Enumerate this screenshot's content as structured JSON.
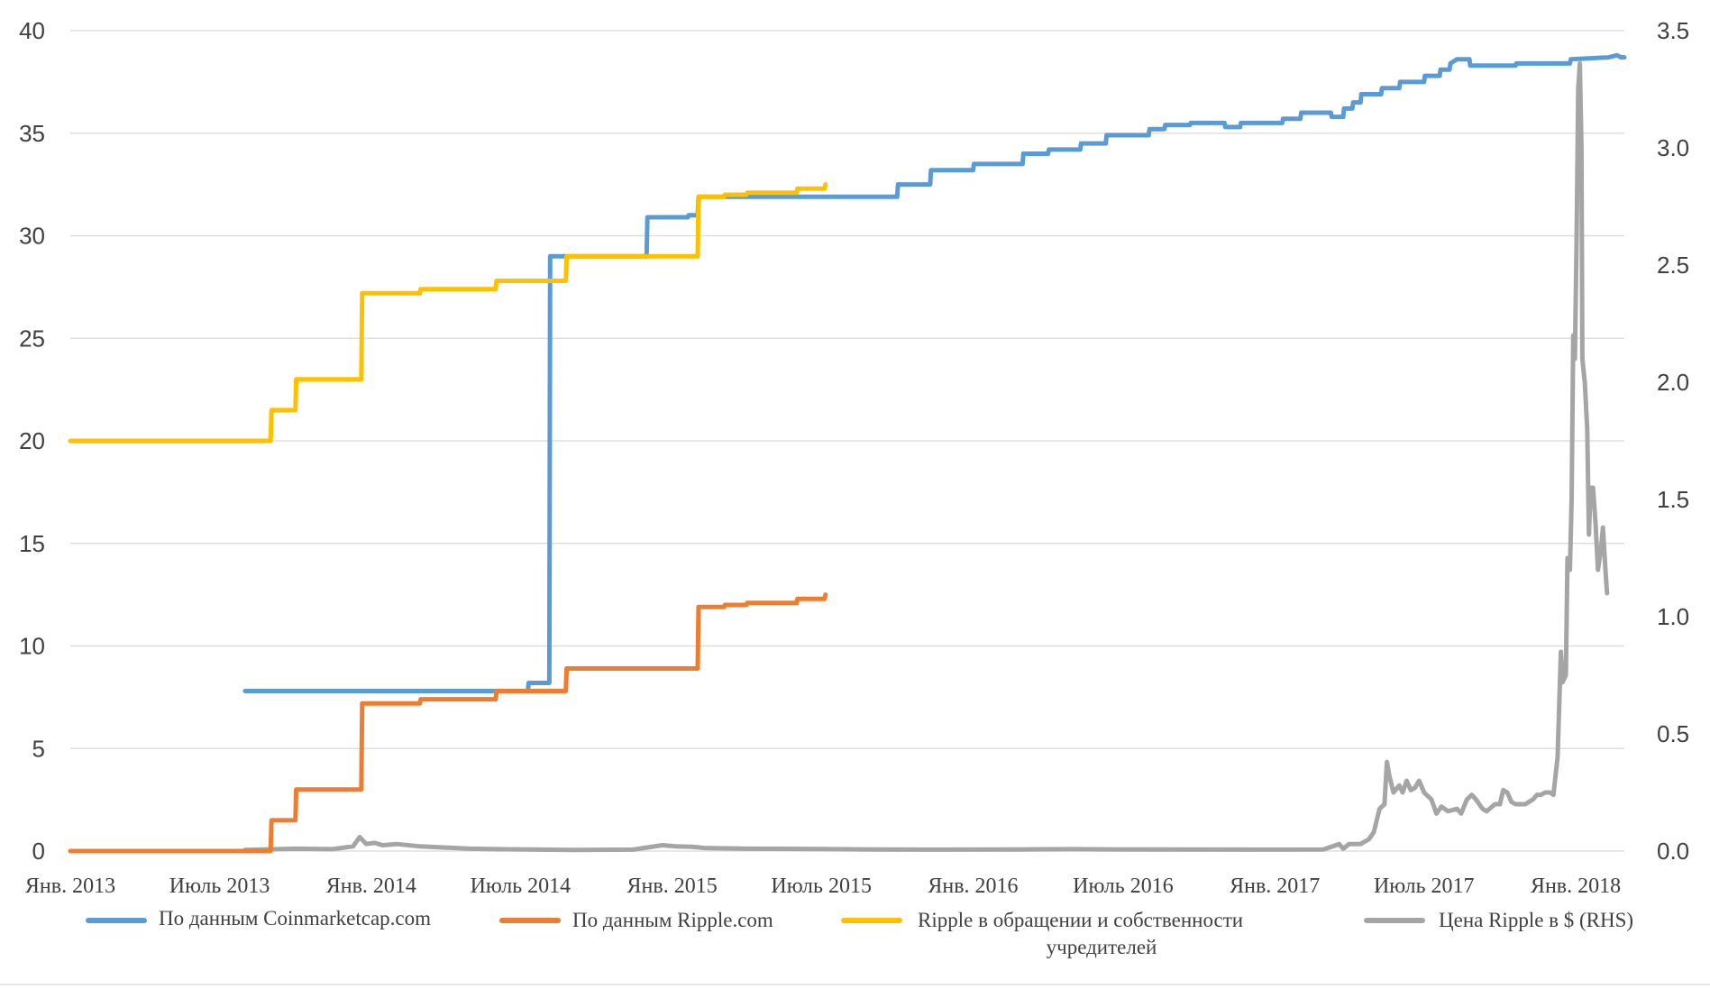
{
  "chart_data": {
    "type": "line",
    "title": "",
    "xlabel": "",
    "ylabel": "",
    "y2label": "",
    "grid": true,
    "legend_position": "bottom",
    "x_range": [
      "2013-01-01",
      "2018-03-01"
    ],
    "ylim": [
      0,
      40
    ],
    "y2lim": [
      0,
      3.5
    ],
    "y_ticks": [
      "0",
      "5",
      "10",
      "15",
      "20",
      "25",
      "30",
      "35",
      "40"
    ],
    "y2_ticks": [
      "0.0",
      "0.5",
      "1.0",
      "1.5",
      "2.0",
      "2.5",
      "3.0",
      "3.5"
    ],
    "x_ticks": [
      {
        "date": "2013-01-01",
        "label": "Янв. 2013"
      },
      {
        "date": "2013-07-01",
        "label": "Июль 2013"
      },
      {
        "date": "2014-01-01",
        "label": "Янв. 2014"
      },
      {
        "date": "2014-07-01",
        "label": "Июль 2014"
      },
      {
        "date": "2015-01-01",
        "label": "Янв. 2015"
      },
      {
        "date": "2015-07-01",
        "label": "Июль 2015"
      },
      {
        "date": "2016-01-01",
        "label": "Янв. 2016"
      },
      {
        "date": "2016-07-01",
        "label": "Июль 2016"
      },
      {
        "date": "2017-01-01",
        "label": "Янв. 2017"
      },
      {
        "date": "2017-07-01",
        "label": "Июль 2017"
      },
      {
        "date": "2018-01-01",
        "label": "Янв. 2018"
      }
    ],
    "series": [
      {
        "name": "По данным Coinmarketcap.com",
        "color": "#5b9bd5",
        "axis": "left",
        "step": true,
        "points": [
          [
            "2013-08-01",
            7.8
          ],
          [
            "2014-07-10",
            7.8
          ],
          [
            "2014-07-11",
            8.2
          ],
          [
            "2014-08-05",
            8.2
          ],
          [
            "2014-08-06",
            29.0
          ],
          [
            "2014-12-01",
            29.0
          ],
          [
            "2014-12-02",
            30.9
          ],
          [
            "2015-01-20",
            30.9
          ],
          [
            "2015-01-21",
            31.0
          ],
          [
            "2015-02-01",
            31.0
          ],
          [
            "2015-02-02",
            31.9
          ],
          [
            "2015-10-01",
            31.9
          ],
          [
            "2015-10-02",
            32.5
          ],
          [
            "2015-11-10",
            32.5
          ],
          [
            "2015-11-11",
            33.2
          ],
          [
            "2016-01-01",
            33.2
          ],
          [
            "2016-01-02",
            33.5
          ],
          [
            "2016-03-01",
            33.5
          ],
          [
            "2016-03-02",
            34.0
          ],
          [
            "2016-04-01",
            34.0
          ],
          [
            "2016-04-02",
            34.2
          ],
          [
            "2016-05-10",
            34.2
          ],
          [
            "2016-05-11",
            34.5
          ],
          [
            "2016-06-10",
            34.5
          ],
          [
            "2016-06-11",
            34.9
          ],
          [
            "2016-08-01",
            34.9
          ],
          [
            "2016-08-02",
            35.2
          ],
          [
            "2016-08-20",
            35.2
          ],
          [
            "2016-08-21",
            35.4
          ],
          [
            "2016-09-20",
            35.4
          ],
          [
            "2016-09-21",
            35.5
          ],
          [
            "2016-11-01",
            35.5
          ],
          [
            "2016-11-02",
            35.3
          ],
          [
            "2016-11-20",
            35.3
          ],
          [
            "2016-11-21",
            35.5
          ],
          [
            "2017-01-10",
            35.5
          ],
          [
            "2017-01-11",
            35.7
          ],
          [
            "2017-02-01",
            35.7
          ],
          [
            "2017-02-02",
            36.0
          ],
          [
            "2017-03-10",
            36.0
          ],
          [
            "2017-03-11",
            35.8
          ],
          [
            "2017-03-25",
            35.8
          ],
          [
            "2017-03-26",
            36.2
          ],
          [
            "2017-04-05",
            36.2
          ],
          [
            "2017-04-06",
            36.5
          ],
          [
            "2017-04-15",
            36.5
          ],
          [
            "2017-04-16",
            36.9
          ],
          [
            "2017-05-10",
            36.9
          ],
          [
            "2017-05-11",
            37.2
          ],
          [
            "2017-06-01",
            37.2
          ],
          [
            "2017-06-02",
            37.5
          ],
          [
            "2017-07-01",
            37.5
          ],
          [
            "2017-07-02",
            37.8
          ],
          [
            "2017-07-20",
            37.8
          ],
          [
            "2017-07-21",
            38.1
          ],
          [
            "2017-08-01",
            38.1
          ],
          [
            "2017-08-02",
            38.4
          ],
          [
            "2017-08-10",
            38.6
          ],
          [
            "2017-08-25",
            38.6
          ],
          [
            "2017-08-26",
            38.3
          ],
          [
            "2017-10-20",
            38.3
          ],
          [
            "2017-10-21",
            38.4
          ],
          [
            "2017-12-25",
            38.4
          ],
          [
            "2017-12-26",
            38.6
          ],
          [
            "2018-02-10",
            38.7
          ],
          [
            "2018-02-20",
            38.8
          ],
          [
            "2018-02-25",
            38.7
          ],
          [
            "2018-03-01",
            38.7
          ]
        ]
      },
      {
        "name": "По данным Ripple.com",
        "color": "#ed7d31",
        "axis": "left",
        "step": true,
        "points": [
          [
            "2013-01-01",
            0
          ],
          [
            "2013-08-01",
            0
          ],
          [
            "2013-09-01",
            0
          ],
          [
            "2013-09-02",
            1.5
          ],
          [
            "2013-10-01",
            1.5
          ],
          [
            "2013-10-02",
            3.0
          ],
          [
            "2013-12-20",
            3.0
          ],
          [
            "2013-12-21",
            7.2
          ],
          [
            "2014-03-01",
            7.2
          ],
          [
            "2014-03-02",
            7.4
          ],
          [
            "2014-06-01",
            7.4
          ],
          [
            "2014-06-02",
            7.8
          ],
          [
            "2014-08-25",
            7.8
          ],
          [
            "2014-08-26",
            8.9
          ],
          [
            "2015-02-01",
            8.9
          ],
          [
            "2015-02-02",
            11.9
          ],
          [
            "2015-03-05",
            11.9
          ],
          [
            "2015-03-06",
            12.0
          ],
          [
            "2015-04-01",
            12.0
          ],
          [
            "2015-04-02",
            12.1
          ],
          [
            "2015-06-01",
            12.1
          ],
          [
            "2015-06-02",
            12.3
          ],
          [
            "2015-07-05",
            12.3
          ],
          [
            "2015-07-06",
            12.5
          ]
        ]
      },
      {
        "name": "Ripple в обращении и собственности учредителей",
        "color": "#ffc000",
        "axis": "left",
        "step": true,
        "points": [
          [
            "2013-01-01",
            20
          ],
          [
            "2013-09-01",
            20
          ],
          [
            "2013-09-02",
            21.5
          ],
          [
            "2013-10-01",
            21.5
          ],
          [
            "2013-10-02",
            23.0
          ],
          [
            "2013-12-20",
            23.0
          ],
          [
            "2013-12-21",
            27.2
          ],
          [
            "2014-03-01",
            27.2
          ],
          [
            "2014-03-02",
            27.4
          ],
          [
            "2014-06-01",
            27.4
          ],
          [
            "2014-06-02",
            27.8
          ],
          [
            "2014-08-25",
            27.8
          ],
          [
            "2014-08-26",
            29.0
          ],
          [
            "2015-02-01",
            29.0
          ],
          [
            "2015-02-02",
            31.9
          ],
          [
            "2015-03-05",
            31.9
          ],
          [
            "2015-03-06",
            32.0
          ],
          [
            "2015-04-01",
            32.0
          ],
          [
            "2015-04-02",
            32.1
          ],
          [
            "2015-06-01",
            32.1
          ],
          [
            "2015-06-02",
            32.3
          ],
          [
            "2015-07-05",
            32.3
          ],
          [
            "2015-07-06",
            32.5
          ]
        ]
      },
      {
        "name": "Цена Ripple в $ (RHS)",
        "color": "#a5a5a5",
        "axis": "right",
        "step": false,
        "points": [
          [
            "2013-08-01",
            0.005
          ],
          [
            "2013-10-01",
            0.01
          ],
          [
            "2013-11-15",
            0.008
          ],
          [
            "2013-12-10",
            0.02
          ],
          [
            "2013-12-18",
            0.06
          ],
          [
            "2013-12-26",
            0.03
          ],
          [
            "2014-01-05",
            0.035
          ],
          [
            "2014-01-15",
            0.025
          ],
          [
            "2014-02-01",
            0.03
          ],
          [
            "2014-03-01",
            0.02
          ],
          [
            "2014-04-01",
            0.015
          ],
          [
            "2014-05-01",
            0.01
          ],
          [
            "2014-06-01",
            0.008
          ],
          [
            "2014-09-01",
            0.005
          ],
          [
            "2014-11-15",
            0.006
          ],
          [
            "2014-12-20",
            0.025
          ],
          [
            "2015-01-05",
            0.02
          ],
          [
            "2015-01-25",
            0.018
          ],
          [
            "2015-02-10",
            0.013
          ],
          [
            "2015-04-01",
            0.01
          ],
          [
            "2015-07-01",
            0.009
          ],
          [
            "2015-09-01",
            0.007
          ],
          [
            "2015-12-01",
            0.006
          ],
          [
            "2016-03-01",
            0.007
          ],
          [
            "2016-05-01",
            0.008
          ],
          [
            "2016-07-01",
            0.007
          ],
          [
            "2016-12-01",
            0.006
          ],
          [
            "2017-03-01",
            0.007
          ],
          [
            "2017-03-20",
            0.03
          ],
          [
            "2017-03-25",
            0.01
          ],
          [
            "2017-04-01",
            0.03
          ],
          [
            "2017-04-15",
            0.03
          ],
          [
            "2017-04-25",
            0.05
          ],
          [
            "2017-05-01",
            0.08
          ],
          [
            "2017-05-08",
            0.18
          ],
          [
            "2017-05-14",
            0.2
          ],
          [
            "2017-05-17",
            0.38
          ],
          [
            "2017-05-20",
            0.32
          ],
          [
            "2017-05-25",
            0.25
          ],
          [
            "2017-06-01",
            0.28
          ],
          [
            "2017-06-05",
            0.25
          ],
          [
            "2017-06-10",
            0.3
          ],
          [
            "2017-06-15",
            0.26
          ],
          [
            "2017-06-20",
            0.27
          ],
          [
            "2017-06-25",
            0.3
          ],
          [
            "2017-07-01",
            0.25
          ],
          [
            "2017-07-10",
            0.22
          ],
          [
            "2017-07-16",
            0.16
          ],
          [
            "2017-07-22",
            0.19
          ],
          [
            "2017-07-30",
            0.17
          ],
          [
            "2017-08-10",
            0.18
          ],
          [
            "2017-08-15",
            0.16
          ],
          [
            "2017-08-22",
            0.22
          ],
          [
            "2017-08-28",
            0.24
          ],
          [
            "2017-09-02",
            0.22
          ],
          [
            "2017-09-06",
            0.2
          ],
          [
            "2017-09-10",
            0.18
          ],
          [
            "2017-09-15",
            0.17
          ],
          [
            "2017-09-25",
            0.2
          ],
          [
            "2017-10-01",
            0.2
          ],
          [
            "2017-10-05",
            0.26
          ],
          [
            "2017-10-10",
            0.25
          ],
          [
            "2017-10-15",
            0.21
          ],
          [
            "2017-10-20",
            0.2
          ],
          [
            "2017-11-01",
            0.2
          ],
          [
            "2017-11-10",
            0.22
          ],
          [
            "2017-11-15",
            0.24
          ],
          [
            "2017-11-20",
            0.24
          ],
          [
            "2017-11-25",
            0.25
          ],
          [
            "2017-12-01",
            0.25
          ],
          [
            "2017-12-05",
            0.24
          ],
          [
            "2017-12-10",
            0.4
          ],
          [
            "2017-12-14",
            0.85
          ],
          [
            "2017-12-16",
            0.72
          ],
          [
            "2017-12-20",
            0.75
          ],
          [
            "2017-12-22",
            1.25
          ],
          [
            "2017-12-25",
            1.2
          ],
          [
            "2017-12-27",
            1.5
          ],
          [
            "2017-12-29",
            2.2
          ],
          [
            "2017-12-31",
            2.1
          ],
          [
            "2018-01-02",
            2.6
          ],
          [
            "2018-01-04",
            3.25
          ],
          [
            "2018-01-06",
            3.36
          ],
          [
            "2018-01-08",
            3.0
          ],
          [
            "2018-01-09",
            2.1
          ],
          [
            "2018-01-12",
            2.0
          ],
          [
            "2018-01-15",
            1.8
          ],
          [
            "2018-01-17",
            1.35
          ],
          [
            "2018-01-19",
            1.55
          ],
          [
            "2018-01-22",
            1.55
          ],
          [
            "2018-01-25",
            1.4
          ],
          [
            "2018-01-28",
            1.2
          ],
          [
            "2018-02-01",
            1.3
          ],
          [
            "2018-02-03",
            1.38
          ],
          [
            "2018-02-06",
            1.2
          ],
          [
            "2018-02-08",
            1.1
          ]
        ]
      }
    ]
  }
}
